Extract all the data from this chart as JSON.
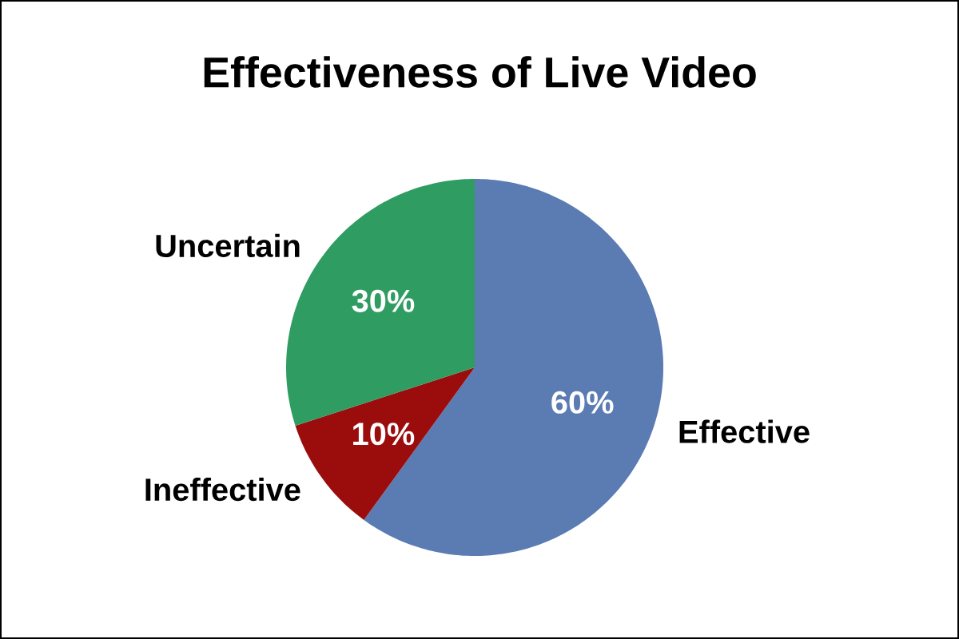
{
  "chart_data": {
    "type": "pie",
    "title": "Effectiveness of Live Video",
    "categories": [
      "Effective",
      "Ineffective",
      "Uncertain"
    ],
    "values": [
      60,
      10,
      30
    ],
    "colors": [
      "#5b7bb3",
      "#9b0c0c",
      "#2f9c62"
    ],
    "value_labels": [
      "60%",
      "10%",
      "30%"
    ]
  }
}
